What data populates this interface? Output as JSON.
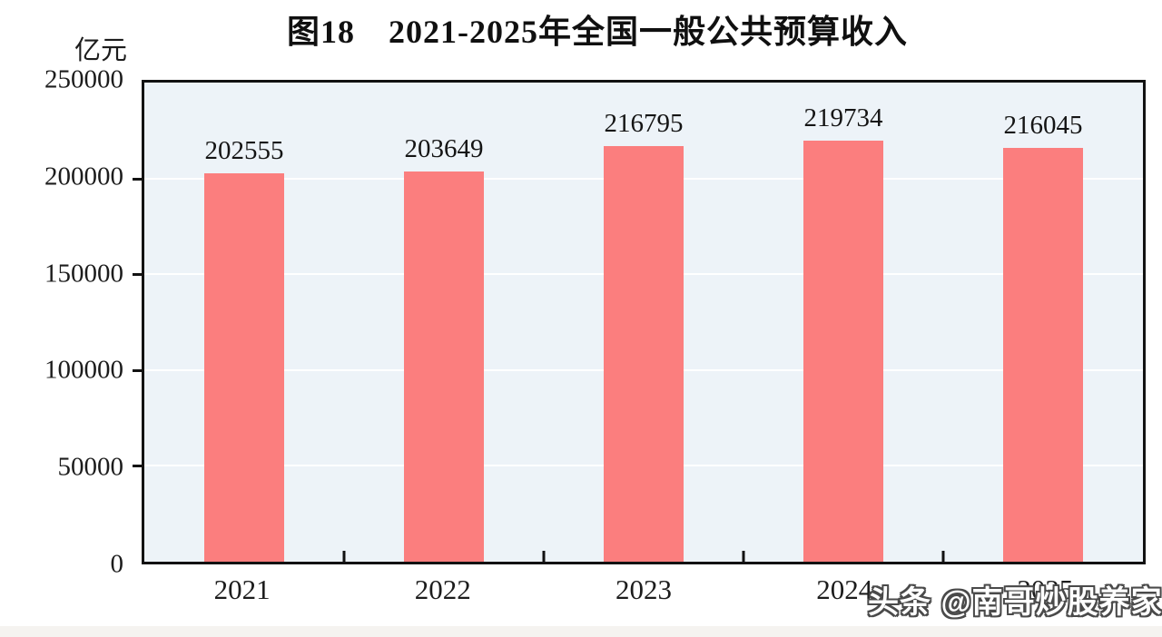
{
  "watermark": "头条 @南哥炒股养家",
  "colors": {
    "bar": "#FB7E7E",
    "plot_background": "#EDF3F8",
    "gridline": "#FFFFFF",
    "axis_frame": "#121212",
    "text": "#1C1C1C",
    "page_background": "#FFFFFF",
    "bottom_strip": "#F5F3F0"
  },
  "chart_data": {
    "type": "bar",
    "title": "图18　2021-2025年全国一般公共预算收入",
    "ylabel": "亿元",
    "xlabel": "",
    "categories": [
      "2021",
      "2022",
      "2023",
      "2024",
      "2025"
    ],
    "values": [
      202555,
      203649,
      216795,
      219734,
      216045
    ],
    "ylim": [
      0,
      250000
    ],
    "yticks": [
      250000,
      200000,
      150000,
      100000,
      50000,
      0
    ],
    "ytick_interval": 50000,
    "grid": true,
    "legend": false,
    "bar_color": "#FB7E7E",
    "plot_background": "#EDF3F8"
  }
}
